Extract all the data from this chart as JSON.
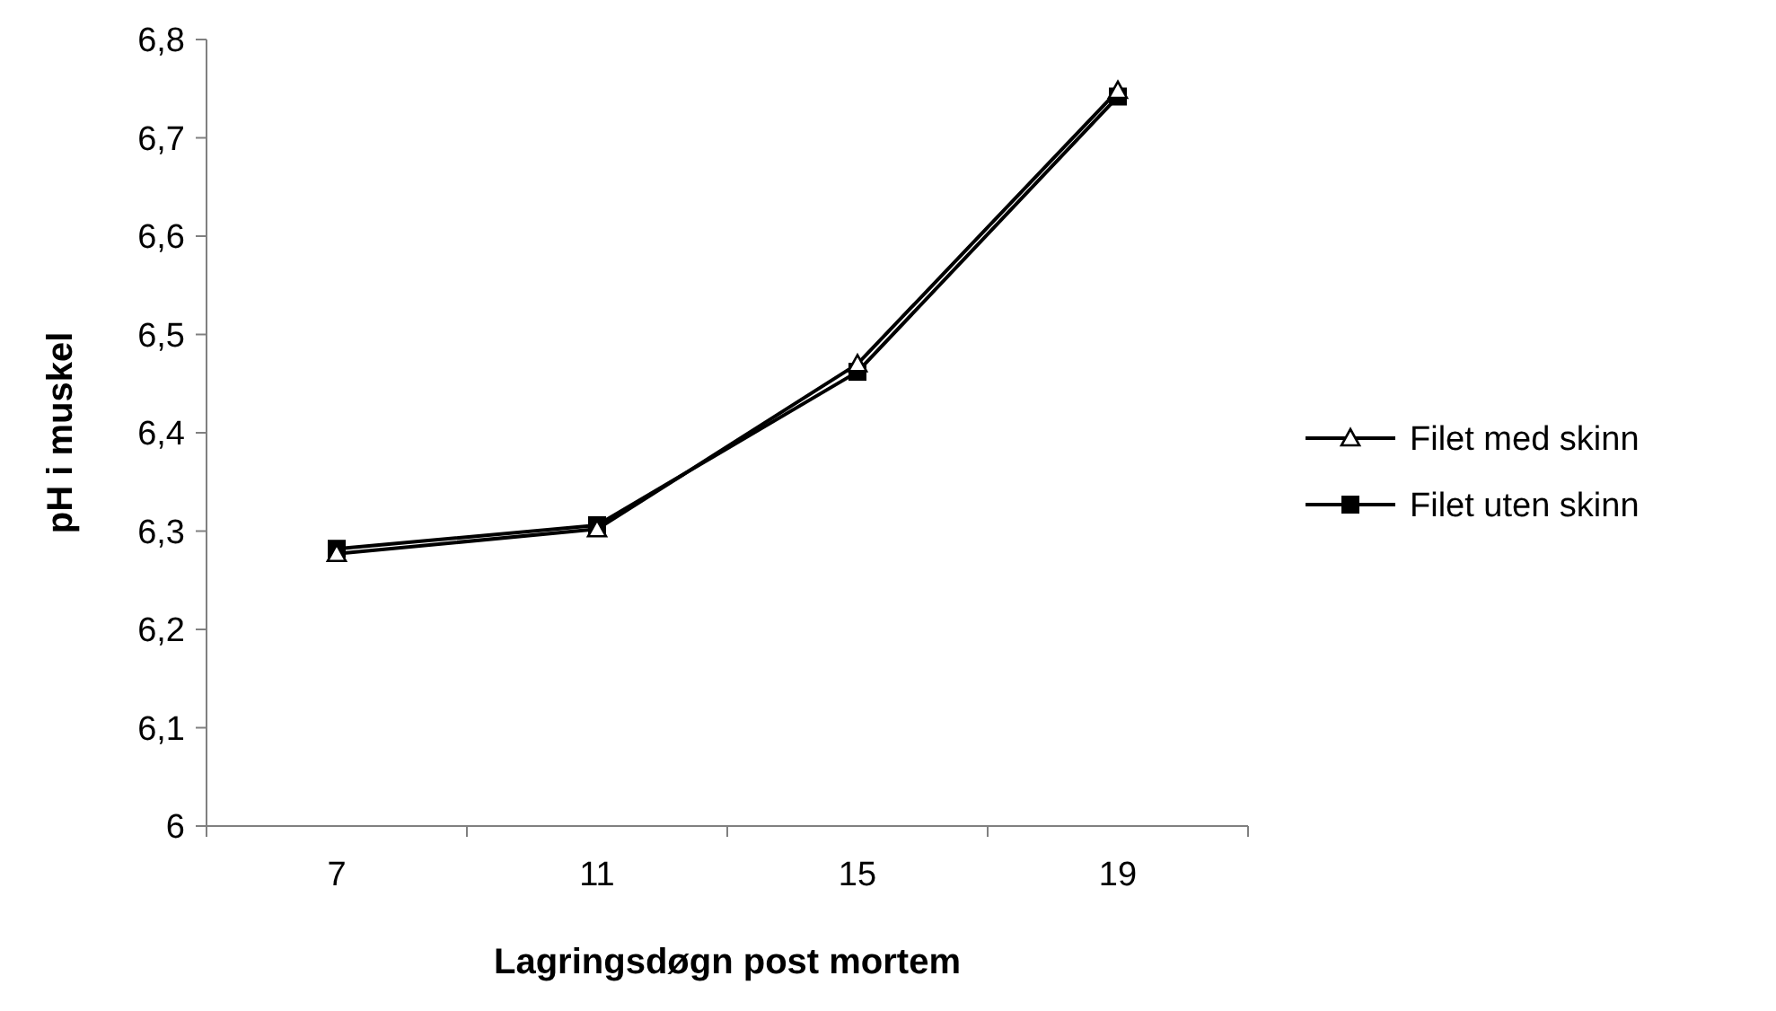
{
  "chart_data": {
    "type": "line",
    "xlabel": "Lagringsdøgn post mortem",
    "ylabel": "pH i muskel",
    "categories": [
      "7",
      "11",
      "15",
      "19"
    ],
    "series": [
      {
        "name": "Filet med skinn",
        "color": "#000000",
        "marker": "triangle",
        "values": [
          6.277,
          6.302,
          6.47,
          6.748
        ]
      },
      {
        "name": "Filet uten skinn",
        "color": "#000000",
        "marker": "square",
        "values": [
          6.282,
          6.306,
          6.462,
          6.742
        ]
      }
    ],
    "ylim": [
      6,
      6.8
    ],
    "yticks": [
      {
        "value": 6,
        "label": "6"
      },
      {
        "value": 6.1,
        "label": "6,1"
      },
      {
        "value": 6.2,
        "label": "6,2"
      },
      {
        "value": 6.3,
        "label": "6,3"
      },
      {
        "value": 6.4,
        "label": "6,4"
      },
      {
        "value": 6.5,
        "label": "6,5"
      },
      {
        "value": 6.6,
        "label": "6,6"
      },
      {
        "value": 6.7,
        "label": "6,7"
      },
      {
        "value": 6.8,
        "label": "6,8"
      }
    ],
    "grid": false,
    "legend": "right"
  }
}
